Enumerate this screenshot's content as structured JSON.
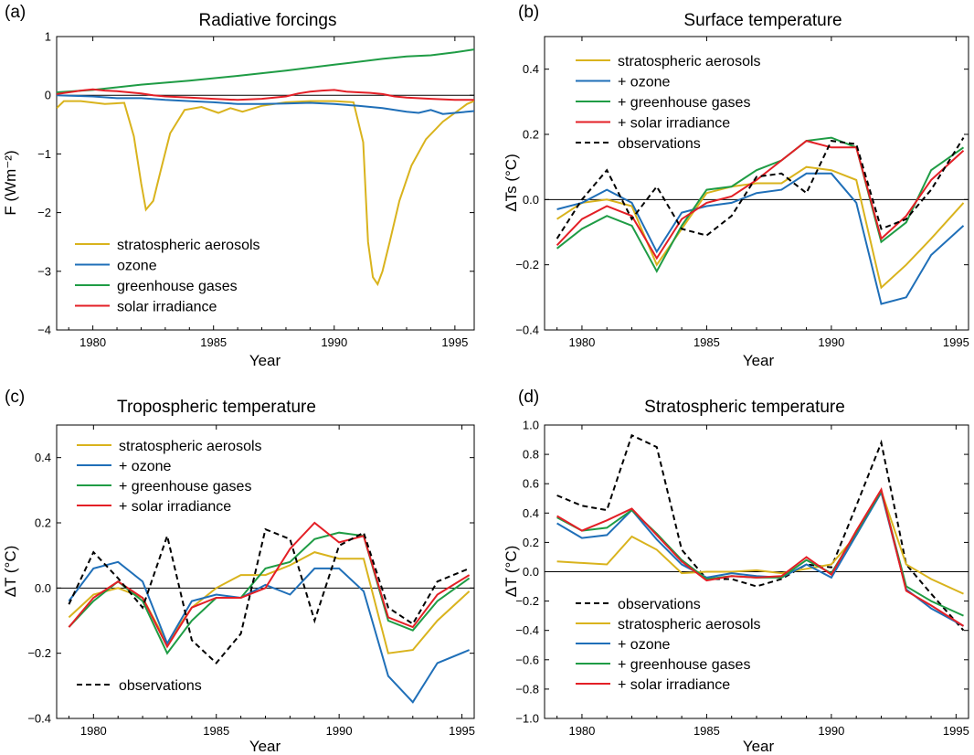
{
  "colors": {
    "aerosols": "#d9b31d",
    "ozone": "#1f6fb8",
    "ghg": "#1f9c45",
    "solar": "#e31f26",
    "observations": "#000000"
  },
  "chart_data": [
    {
      "panel": "(a)",
      "type": "line",
      "title": "Radiative forcings",
      "xlabel": "Year",
      "ylabel": "F (Wm⁻²)",
      "xlim": [
        1978.5,
        1995.8
      ],
      "ylim": [
        -4,
        1
      ],
      "xticks": [
        1980,
        1985,
        1990,
        1995
      ],
      "yticks": [
        -4,
        -3,
        -2,
        -1,
        0,
        1
      ],
      "zero_line": true,
      "legend_position": "bottom-left",
      "series": [
        {
          "name": "stratospheric  aerosols",
          "color_key": "aerosols",
          "dash": false,
          "x": [
            1978.5,
            1978.8,
            1979.5,
            1980.5,
            1981.3,
            1981.7,
            1982.0,
            1982.2,
            1982.5,
            1982.8,
            1983.2,
            1983.8,
            1984.5,
            1985.2,
            1985.7,
            1986.2,
            1987.0,
            1988.0,
            1989.0,
            1990.0,
            1990.8,
            1991.2,
            1991.4,
            1991.6,
            1991.8,
            1992.0,
            1992.3,
            1992.7,
            1993.2,
            1993.8,
            1994.5,
            1995.0,
            1995.5,
            1995.8
          ],
          "y": [
            -0.22,
            -0.1,
            -0.1,
            -0.15,
            -0.13,
            -0.7,
            -1.5,
            -1.95,
            -1.8,
            -1.3,
            -0.65,
            -0.25,
            -0.2,
            -0.3,
            -0.22,
            -0.28,
            -0.18,
            -0.12,
            -0.1,
            -0.1,
            -0.12,
            -0.8,
            -2.5,
            -3.1,
            -3.22,
            -3.0,
            -2.5,
            -1.8,
            -1.2,
            -0.75,
            -0.45,
            -0.3,
            -0.15,
            -0.1
          ]
        },
        {
          "name": "ozone",
          "color_key": "ozone",
          "dash": false,
          "x": [
            1978.5,
            1980.0,
            1981.0,
            1982.0,
            1983.0,
            1984.0,
            1985.0,
            1986.0,
            1987.0,
            1988.0,
            1989.0,
            1990.0,
            1991.0,
            1992.0,
            1993.0,
            1993.5,
            1994.0,
            1994.5,
            1995.0,
            1995.8
          ],
          "y": [
            0.0,
            -0.02,
            -0.05,
            -0.05,
            -0.08,
            -0.1,
            -0.12,
            -0.15,
            -0.15,
            -0.14,
            -0.13,
            -0.15,
            -0.18,
            -0.22,
            -0.28,
            -0.3,
            -0.25,
            -0.32,
            -0.3,
            -0.27
          ]
        },
        {
          "name": "greenhouse gases",
          "color_key": "ghg",
          "dash": false,
          "x": [
            1978.5,
            1980.0,
            1982.0,
            1984.0,
            1986.0,
            1988.0,
            1990.0,
            1992.0,
            1993.0,
            1994.0,
            1995.0,
            1995.8
          ],
          "y": [
            0.05,
            0.09,
            0.18,
            0.25,
            0.33,
            0.42,
            0.52,
            0.62,
            0.66,
            0.68,
            0.73,
            0.78
          ]
        },
        {
          "name": "solar irradiance",
          "color_key": "solar",
          "dash": false,
          "x": [
            1978.5,
            1979.0,
            1979.5,
            1980.0,
            1980.5,
            1981.0,
            1981.5,
            1982.0,
            1982.5,
            1983.0,
            1984.0,
            1985.0,
            1986.0,
            1987.0,
            1988.0,
            1988.5,
            1989.0,
            1989.5,
            1990.0,
            1990.5,
            1991.0,
            1991.5,
            1992.0,
            1992.5,
            1993.0,
            1994.0,
            1995.0,
            1995.8
          ],
          "y": [
            0.02,
            0.05,
            0.08,
            0.1,
            0.08,
            0.07,
            0.05,
            0.03,
            0.0,
            -0.02,
            -0.04,
            -0.06,
            -0.08,
            -0.06,
            -0.02,
            0.03,
            0.06,
            0.08,
            0.09,
            0.06,
            0.05,
            0.04,
            0.02,
            -0.02,
            -0.04,
            -0.06,
            -0.08,
            -0.08
          ]
        }
      ]
    },
    {
      "panel": "(b)",
      "type": "line",
      "title": "Surface temperature",
      "xlabel": "Year",
      "ylabel": "ΔTs (°C)",
      "xlim": [
        1978.5,
        1995.5
      ],
      "ylim": [
        -0.4,
        0.5
      ],
      "xticks": [
        1980,
        1985,
        1990,
        1995
      ],
      "yticks": [
        -0.4,
        -0.2,
        0.0,
        0.2,
        0.4
      ],
      "ytick_labels": [
        "−0.4",
        "−0.2",
        "0.0",
        "0.2",
        "0.4"
      ],
      "zero_line": true,
      "legend_position": "top-left",
      "series": [
        {
          "name": "stratospheric  aerosols",
          "color_key": "aerosols",
          "dash": false,
          "x": [
            1979,
            1980,
            1981,
            1982,
            1983,
            1984,
            1985,
            1986,
            1987,
            1988,
            1989,
            1990,
            1991,
            1992,
            1993,
            1994,
            1995.3
          ],
          "y": [
            -0.06,
            -0.01,
            0.0,
            -0.02,
            -0.2,
            -0.09,
            0.02,
            0.04,
            0.05,
            0.05,
            0.1,
            0.09,
            0.06,
            -0.27,
            -0.2,
            -0.12,
            -0.01
          ]
        },
        {
          "name": "+ ozone",
          "color_key": "ozone",
          "dash": false,
          "x": [
            1979,
            1980,
            1981,
            1982,
            1983,
            1984,
            1985,
            1986,
            1987,
            1988,
            1989,
            1990,
            1991,
            1992,
            1993,
            1994,
            1995.3
          ],
          "y": [
            -0.03,
            -0.01,
            0.03,
            -0.01,
            -0.16,
            -0.04,
            -0.02,
            -0.01,
            0.02,
            0.03,
            0.08,
            0.08,
            -0.01,
            -0.32,
            -0.3,
            -0.17,
            -0.08
          ]
        },
        {
          "name": "+ greenhouse gases",
          "color_key": "ghg",
          "dash": false,
          "x": [
            1979,
            1980,
            1981,
            1982,
            1983,
            1984,
            1985,
            1986,
            1987,
            1988,
            1989,
            1990,
            1991,
            1992,
            1993,
            1994,
            1995.3
          ],
          "y": [
            -0.15,
            -0.09,
            -0.05,
            -0.08,
            -0.22,
            -0.08,
            0.03,
            0.04,
            0.09,
            0.12,
            0.18,
            0.19,
            0.16,
            -0.13,
            -0.07,
            0.09,
            0.16
          ]
        },
        {
          "name": "+ solar irradiance",
          "color_key": "solar",
          "dash": false,
          "x": [
            1979,
            1980,
            1981,
            1982,
            1983,
            1984,
            1985,
            1986,
            1987,
            1988,
            1989,
            1990,
            1991,
            1992,
            1993,
            1994,
            1995.3
          ],
          "y": [
            -0.14,
            -0.06,
            -0.02,
            -0.05,
            -0.18,
            -0.06,
            -0.01,
            0.01,
            0.06,
            0.12,
            0.18,
            0.16,
            0.16,
            -0.12,
            -0.05,
            0.06,
            0.15
          ]
        },
        {
          "name": "observations",
          "color_key": "observations",
          "dash": true,
          "x": [
            1979,
            1980,
            1981,
            1982,
            1983,
            1984,
            1985,
            1986,
            1987,
            1988,
            1989,
            1990,
            1991,
            1992,
            1993,
            1994,
            1995.3
          ],
          "y": [
            -0.12,
            0.0,
            0.09,
            -0.06,
            0.04,
            -0.09,
            -0.11,
            -0.05,
            0.07,
            0.08,
            0.02,
            0.18,
            0.17,
            -0.09,
            -0.06,
            0.03,
            0.19
          ]
        }
      ]
    },
    {
      "panel": "(c)",
      "type": "line",
      "title": "Tropospheric temperature",
      "xlabel": "Year",
      "ylabel": "ΔT (°C)",
      "xlim": [
        1978.5,
        1995.5
      ],
      "ylim": [
        -0.4,
        0.5
      ],
      "xticks": [
        1980,
        1985,
        1990,
        1995
      ],
      "yticks": [
        -0.4,
        -0.2,
        0.0,
        0.2,
        0.4
      ],
      "ytick_labels": [
        "−0.4",
        "−0.2",
        "0.0",
        "0.2",
        "0.4"
      ],
      "zero_line": true,
      "legend_position": "top-left",
      "series": [
        {
          "name": "stratospheric  aerosols",
          "color_key": "aerosols",
          "dash": false,
          "x": [
            1979,
            1980,
            1981,
            1982,
            1983,
            1984,
            1985,
            1986,
            1987,
            1988,
            1989,
            1990,
            1991,
            1992,
            1993,
            1994,
            1995.3
          ],
          "y": [
            -0.09,
            -0.02,
            0.0,
            -0.03,
            -0.17,
            -0.06,
            0.0,
            0.04,
            0.04,
            0.07,
            0.11,
            0.09,
            0.09,
            -0.2,
            -0.19,
            -0.1,
            -0.01
          ]
        },
        {
          "name": "+ ozone",
          "color_key": "ozone",
          "dash": false,
          "x": [
            1979,
            1980,
            1981,
            1982,
            1983,
            1984,
            1985,
            1986,
            1987,
            1988,
            1989,
            1990,
            1991,
            1992,
            1993,
            1994,
            1995.3
          ],
          "y": [
            -0.04,
            0.06,
            0.08,
            0.02,
            -0.17,
            -0.04,
            -0.02,
            -0.03,
            0.01,
            -0.02,
            0.06,
            0.06,
            -0.01,
            -0.27,
            -0.35,
            -0.23,
            -0.19
          ]
        },
        {
          "name": "+ greenhouse gases",
          "color_key": "ghg",
          "dash": false,
          "x": [
            1979,
            1980,
            1981,
            1982,
            1983,
            1984,
            1985,
            1986,
            1987,
            1988,
            1989,
            1990,
            1991,
            1992,
            1993,
            1994,
            1995.3
          ],
          "y": [
            -0.12,
            -0.04,
            0.02,
            -0.04,
            -0.2,
            -0.1,
            -0.03,
            -0.03,
            0.06,
            0.08,
            0.15,
            0.17,
            0.16,
            -0.1,
            -0.13,
            -0.04,
            0.03
          ]
        },
        {
          "name": "+ solar irradiance",
          "color_key": "solar",
          "dash": false,
          "x": [
            1979,
            1980,
            1981,
            1982,
            1983,
            1984,
            1985,
            1986,
            1987,
            1988,
            1989,
            1990,
            1991,
            1992,
            1993,
            1994,
            1995.3
          ],
          "y": [
            -0.12,
            -0.03,
            0.02,
            -0.03,
            -0.18,
            -0.06,
            -0.03,
            -0.03,
            0.0,
            0.12,
            0.2,
            0.14,
            0.16,
            -0.09,
            -0.12,
            -0.02,
            0.04
          ]
        },
        {
          "name": "observations",
          "color_key": "observations",
          "dash": true,
          "x": [
            1979,
            1980,
            1981,
            1982,
            1983,
            1984,
            1985,
            1986,
            1987,
            1988,
            1989,
            1990,
            1991,
            1992,
            1993,
            1994,
            1995.3
          ],
          "y": [
            -0.05,
            0.11,
            0.03,
            -0.06,
            0.16,
            -0.16,
            -0.23,
            -0.14,
            0.18,
            0.15,
            -0.1,
            0.13,
            0.17,
            -0.06,
            -0.11,
            0.02,
            0.06
          ]
        }
      ],
      "legend_extra": "observations"
    },
    {
      "panel": "(d)",
      "type": "line",
      "title": "Stratospheric temperature",
      "xlabel": "Year",
      "ylabel": "ΔT (°C)",
      "xlim": [
        1978.5,
        1995.5
      ],
      "ylim": [
        -1.0,
        1.0
      ],
      "xticks": [
        1980,
        1985,
        1990,
        1995
      ],
      "yticks": [
        -1.0,
        -0.8,
        -0.6,
        -0.4,
        -0.2,
        0.0,
        0.2,
        0.4,
        0.6,
        0.8,
        1.0
      ],
      "ytick_labels": [
        "−1.0",
        "−0.8",
        "−0.6",
        "−0.4",
        "−0.2",
        "0.0",
        "0.2",
        "0.4",
        "0.6",
        "0.8",
        "1.0"
      ],
      "zero_line": true,
      "legend_position": "bottom-left",
      "series": [
        {
          "name": "observations",
          "color_key": "observations",
          "dash": true,
          "x": [
            1979,
            1980,
            1981,
            1982,
            1983,
            1984,
            1985,
            1986,
            1987,
            1988,
            1989,
            1990,
            1991,
            1992,
            1993,
            1994,
            1995.3
          ],
          "y": [
            0.52,
            0.45,
            0.42,
            0.93,
            0.85,
            0.15,
            -0.05,
            -0.05,
            -0.1,
            -0.05,
            0.05,
            0.03,
            0.45,
            0.88,
            0.05,
            -0.15,
            -0.4
          ]
        },
        {
          "name": "stratospheric  aerosols",
          "color_key": "aerosols",
          "dash": false,
          "x": [
            1979,
            1980,
            1981,
            1982,
            1983,
            1984,
            1985,
            1986,
            1987,
            1988,
            1989,
            1990,
            1991,
            1992,
            1993,
            1994,
            1995.3
          ],
          "y": [
            0.07,
            0.06,
            0.05,
            0.24,
            0.15,
            -0.01,
            0.0,
            0.0,
            0.01,
            -0.01,
            0.02,
            0.05,
            0.25,
            0.55,
            0.05,
            -0.05,
            -0.15
          ]
        },
        {
          "name": "+ ozone",
          "color_key": "ozone",
          "dash": false,
          "x": [
            1979,
            1980,
            1981,
            1982,
            1983,
            1984,
            1985,
            1986,
            1987,
            1988,
            1989,
            1990,
            1991,
            1992,
            1993,
            1994,
            1995.3
          ],
          "y": [
            0.33,
            0.23,
            0.25,
            0.42,
            0.22,
            0.05,
            -0.04,
            -0.01,
            -0.03,
            -0.04,
            0.05,
            -0.04,
            0.25,
            0.54,
            -0.12,
            -0.25,
            -0.37
          ]
        },
        {
          "name": "+ greenhouse gases",
          "color_key": "ghg",
          "dash": false,
          "x": [
            1979,
            1980,
            1981,
            1982,
            1983,
            1984,
            1985,
            1986,
            1987,
            1988,
            1989,
            1990,
            1991,
            1992,
            1993,
            1994,
            1995.3
          ],
          "y": [
            0.37,
            0.28,
            0.3,
            0.42,
            0.26,
            0.08,
            -0.05,
            -0.03,
            -0.04,
            -0.04,
            0.08,
            -0.01,
            0.27,
            0.55,
            -0.1,
            -0.2,
            -0.3
          ]
        },
        {
          "name": "+ solar irradiance",
          "color_key": "solar",
          "dash": false,
          "x": [
            1979,
            1980,
            1981,
            1982,
            1983,
            1984,
            1985,
            1986,
            1987,
            1988,
            1989,
            1990,
            1991,
            1992,
            1993,
            1994,
            1995.3
          ],
          "y": [
            0.38,
            0.28,
            0.35,
            0.43,
            0.25,
            0.07,
            -0.06,
            -0.03,
            -0.04,
            -0.03,
            0.1,
            -0.02,
            0.28,
            0.56,
            -0.13,
            -0.23,
            -0.37
          ]
        }
      ]
    }
  ]
}
